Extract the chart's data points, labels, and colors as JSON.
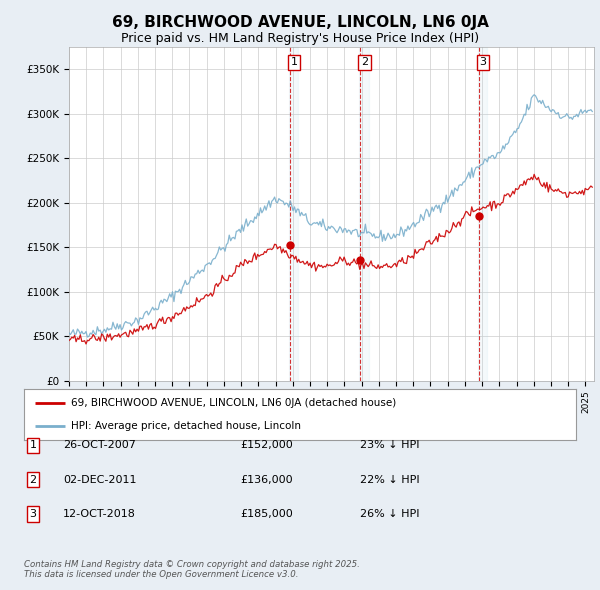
{
  "title": "69, BIRCHWOOD AVENUE, LINCOLN, LN6 0JA",
  "subtitle": "Price paid vs. HM Land Registry's House Price Index (HPI)",
  "ylim": [
    0,
    375000
  ],
  "yticks": [
    0,
    50000,
    100000,
    150000,
    200000,
    250000,
    300000,
    350000
  ],
  "ytick_labels": [
    "£0",
    "£50K",
    "£100K",
    "£150K",
    "£200K",
    "£250K",
    "£300K",
    "£350K"
  ],
  "sale_year_nums": [
    2007.82,
    2011.92,
    2018.79
  ],
  "sale_prices": [
    152000,
    136000,
    185000
  ],
  "sale_labels": [
    "1",
    "2",
    "3"
  ],
  "sale_info": [
    {
      "label": "1",
      "date": "26-OCT-2007",
      "price": "£152,000",
      "hpi": "23% ↓ HPI"
    },
    {
      "label": "2",
      "date": "02-DEC-2011",
      "price": "£136,000",
      "hpi": "22% ↓ HPI"
    },
    {
      "label": "3",
      "date": "12-OCT-2018",
      "price": "£185,000",
      "hpi": "26% ↓ HPI"
    }
  ],
  "red_line_color": "#cc0000",
  "blue_line_color": "#7aafcc",
  "background_color": "#e8eef4",
  "plot_bg_color": "#ffffff",
  "grid_color": "#cccccc",
  "vline_color": "#cc0000",
  "legend_line1": "69, BIRCHWOOD AVENUE, LINCOLN, LN6 0JA (detached house)",
  "legend_line2": "HPI: Average price, detached house, Lincoln",
  "footer": "Contains HM Land Registry data © Crown copyright and database right 2025.\nThis data is licensed under the Open Government Licence v3.0.",
  "title_fontsize": 11,
  "subtitle_fontsize": 9,
  "hpi_knots_x": [
    1995,
    1997,
    1999,
    2001,
    2003,
    2005,
    2007,
    2008,
    2009,
    2010,
    2011,
    2012,
    2013,
    2014,
    2015,
    2016,
    2017,
    2018,
    2019,
    2020,
    2021,
    2022,
    2023,
    2024,
    2025.4
  ],
  "hpi_knots_y": [
    52000,
    57000,
    68000,
    95000,
    130000,
    170000,
    205000,
    195000,
    178000,
    172000,
    170000,
    165000,
    162000,
    163000,
    175000,
    190000,
    205000,
    225000,
    245000,
    255000,
    280000,
    320000,
    305000,
    295000,
    305000
  ],
  "red_knots_x": [
    1995,
    1997,
    1999,
    2001,
    2003,
    2005,
    2007,
    2008,
    2009,
    2010,
    2011,
    2012,
    2013,
    2014,
    2015,
    2016,
    2017,
    2018,
    2019,
    2020,
    2021,
    2022,
    2023,
    2024,
    2025.4
  ],
  "red_knots_y": [
    45000,
    48000,
    55000,
    72000,
    95000,
    130000,
    152000,
    140000,
    130000,
    128000,
    136000,
    130000,
    128000,
    130000,
    140000,
    155000,
    168000,
    185000,
    195000,
    200000,
    215000,
    230000,
    215000,
    210000,
    215000
  ],
  "noise_scale_hpi": 3000,
  "noise_scale_red": 2500
}
